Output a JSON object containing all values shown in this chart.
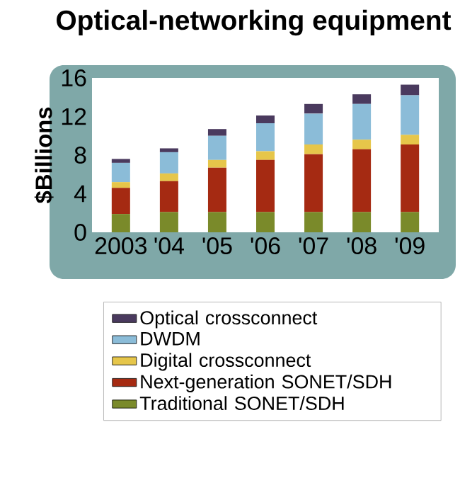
{
  "chart_data": {
    "type": "bar",
    "title": "Optical-networking equipment",
    "ylabel": "$Billions",
    "categories": [
      "2003",
      "'04",
      "'05",
      "'06",
      "'07",
      "'08",
      "'09"
    ],
    "stacked": true,
    "series": [
      {
        "name": "Traditional SONET/SDH",
        "color": "#7a8a2a",
        "values": [
          1.9,
          2.1,
          2.1,
          2.1,
          2.1,
          2.1,
          2.1
        ]
      },
      {
        "name": "Next-generation SONET/SDH",
        "color": "#a52a12",
        "values": [
          2.7,
          3.2,
          4.6,
          5.4,
          6.0,
          6.5,
          7.0
        ]
      },
      {
        "name": "Digital crossconnect",
        "color": "#e6c64a",
        "values": [
          0.6,
          0.8,
          0.8,
          0.9,
          1.0,
          1.0,
          1.0
        ]
      },
      {
        "name": "DWDM",
        "color": "#8bbcd8",
        "values": [
          2.0,
          2.2,
          2.5,
          2.9,
          3.2,
          3.7,
          4.1
        ]
      },
      {
        "name": "Optical crossconnect",
        "color": "#4a3a5e",
        "values": [
          0.4,
          0.4,
          0.7,
          0.8,
          1.0,
          1.0,
          1.1
        ]
      }
    ],
    "ylim": [
      0,
      16
    ],
    "yticks": [
      0,
      4,
      8,
      12,
      16
    ],
    "legend": "bottom"
  }
}
